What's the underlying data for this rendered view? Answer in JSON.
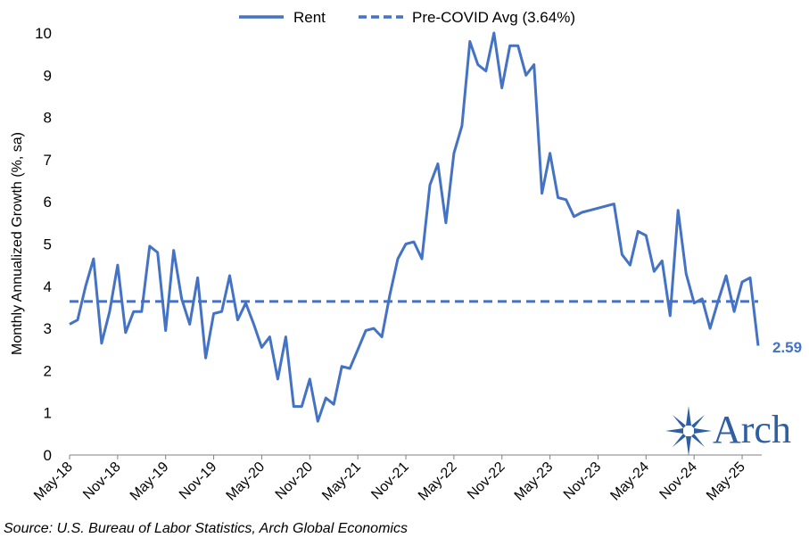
{
  "chart_data": {
    "type": "line",
    "title": "",
    "xlabel": "",
    "ylabel": "Monthly Annualized Growth (%, sa)",
    "ylim": [
      0,
      10
    ],
    "yticks": [
      "0",
      "1",
      "2",
      "3",
      "4",
      "5",
      "6",
      "7",
      "8",
      "9",
      "10"
    ],
    "x_start": "May-18",
    "x_ticks": [
      "May-18",
      "Nov-18",
      "May-19",
      "Nov-19",
      "May-20",
      "Nov-20",
      "May-21",
      "Nov-21",
      "May-22",
      "Nov-22",
      "May-23",
      "Nov-23",
      "May-24",
      "Nov-24",
      "May-25"
    ],
    "grid": false,
    "legend_position": "top",
    "series": [
      {
        "name": "Rent",
        "color": "#4472C4",
        "style": "solid",
        "values": [
          3.1,
          3.2,
          4.0,
          4.65,
          2.65,
          3.4,
          4.5,
          2.9,
          3.4,
          3.4,
          4.95,
          4.8,
          2.95,
          4.85,
          3.7,
          3.1,
          4.2,
          2.3,
          3.35,
          3.4,
          4.25,
          3.2,
          3.6,
          3.1,
          2.55,
          2.8,
          1.8,
          2.8,
          1.15,
          1.15,
          1.8,
          0.8,
          1.35,
          1.2,
          2.1,
          2.05,
          2.5,
          2.95,
          3.0,
          2.8,
          3.8,
          4.65,
          5.0,
          5.05,
          4.65,
          6.4,
          6.9,
          5.5,
          7.15,
          7.8,
          9.8,
          9.25,
          9.1,
          10.0,
          8.7,
          9.7,
          9.7,
          9.0,
          9.25,
          6.2,
          7.15,
          6.1,
          6.05,
          5.65,
          5.75,
          5.8,
          5.85,
          5.9,
          5.95,
          4.75,
          4.5,
          5.3,
          5.2,
          4.35,
          4.6,
          3.3,
          5.8,
          4.3,
          3.6,
          3.7,
          3.0,
          3.65,
          4.25,
          3.4,
          4.1,
          4.2,
          2.59
        ]
      },
      {
        "name": "Pre-COVID Avg (3.64%)",
        "color": "#4472C4",
        "style": "dashed",
        "constant": 3.64
      }
    ],
    "end_label": "2.59"
  },
  "source": "Source: U.S. Bureau of Labor Statistics, Arch Global Economics",
  "logo": {
    "text": "Arch",
    "color": "#2E5FA3"
  }
}
